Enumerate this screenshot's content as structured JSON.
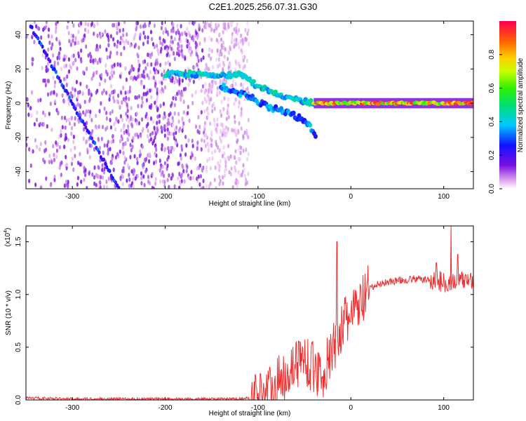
{
  "title": "C2E1.2025.256.07.31.G30",
  "chart_data": [
    {
      "type": "heatmap",
      "xlabel": "Height of straight line (km)",
      "ylabel": "Frequency (Hz)",
      "xlim": [
        -350,
        132
      ],
      "ylim": [
        -50,
        48
      ],
      "xticks": [
        -300,
        -200,
        -100,
        0,
        100
      ],
      "yticks": [
        -40,
        -20,
        0,
        20,
        40
      ],
      "colorbar": {
        "label": "Normalized spectral amplitude",
        "range": [
          0,
          1
        ],
        "ticks": [
          0.0,
          0.2,
          0.4,
          0.6,
          0.8
        ]
      },
      "features": [
        {
          "name": "noise-speckle",
          "x_range": [
            -350,
            -110
          ],
          "y_range": [
            -50,
            48
          ]
        },
        {
          "name": "descending-trace",
          "x": [
            -345,
            -300,
            -250
          ],
          "y": [
            45,
            0,
            -50
          ]
        },
        {
          "name": "upper-branch",
          "x": [
            -200,
            -170,
            -140,
            -120,
            -100,
            -80,
            -60,
            -40
          ],
          "y": [
            17,
            17,
            16,
            17,
            10,
            5,
            2,
            0
          ]
        },
        {
          "name": "lower-branch",
          "x": [
            -140,
            -110,
            -90,
            -70,
            -50,
            -38
          ],
          "y": [
            10,
            4,
            -2,
            -5,
            -10,
            -18
          ]
        },
        {
          "name": "stable-band",
          "x": [
            -40,
            0,
            50,
            100,
            132
          ],
          "y": [
            0,
            0,
            0,
            0,
            0
          ]
        }
      ]
    },
    {
      "type": "line",
      "xlabel": "Height of straight line (km)",
      "ylabel": "SNR (10 * v/v)",
      "yscale_label": "(x10",
      "yscale_exponent": "4",
      "yscale_close": ")",
      "xlim": [
        -350,
        132
      ],
      "ylim": [
        0,
        1.65
      ],
      "xticks": [
        -300,
        -200,
        -100,
        0,
        100
      ],
      "yticks": [
        0.0,
        0.5,
        1.0,
        1.5
      ],
      "series": [
        {
          "name": "SNR",
          "color": "#f03030",
          "x": [
            -350,
            -300,
            -200,
            -120,
            -100,
            -90,
            -80,
            -70,
            -60,
            -50,
            -40,
            -30,
            -20,
            -10,
            0,
            10,
            20,
            30,
            40,
            50,
            60,
            70,
            80,
            90,
            100,
            110,
            120,
            132
          ],
          "y": [
            0.02,
            0.01,
            0.01,
            0.01,
            0.03,
            0.08,
            0.15,
            0.25,
            0.35,
            0.4,
            0.3,
            0.25,
            0.45,
            0.7,
            0.8,
            0.9,
            1.05,
            1.1,
            1.12,
            1.13,
            1.14,
            1.15,
            1.14,
            1.13,
            1.12,
            1.12,
            1.13,
            1.15
          ]
        }
      ],
      "spikes": [
        {
          "x": -15,
          "y": 1.5
        },
        {
          "x": 92,
          "y": 1.3
        },
        {
          "x": 108,
          "y": 1.65
        },
        {
          "x": 115,
          "y": 1.38
        }
      ]
    }
  ]
}
